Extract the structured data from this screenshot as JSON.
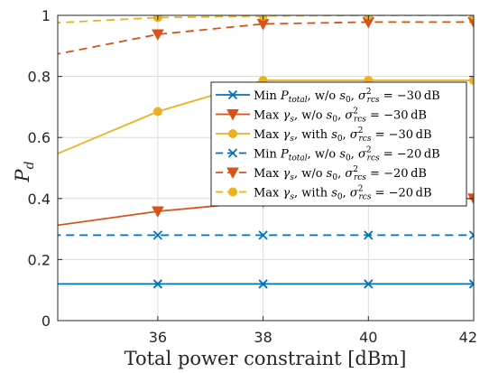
{
  "chart_data": {
    "type": "line",
    "xlabel": "Total power constraint [dBm]",
    "ylabel": "P_d",
    "xlim": [
      34.1,
      42
    ],
    "ylim": [
      0,
      1
    ],
    "xticks": [
      36,
      38,
      40,
      42
    ],
    "yticks": [
      0,
      0.2,
      0.4,
      0.6,
      0.8,
      1
    ],
    "xtick_labels": [
      "36",
      "38",
      "40",
      "42"
    ],
    "ytick_labels": [
      "0",
      "0.2",
      "0.4",
      "0.6",
      "0.8",
      "1"
    ],
    "grid": true,
    "legend_position": "center-right",
    "series": [
      {
        "name": "Min P_total, w/o s_0, σ²_rcs = −30 dB",
        "color": "#0072BD",
        "linestyle": "solid",
        "marker": "x",
        "x": [
          34,
          36,
          38,
          40,
          42
        ],
        "y": [
          0.12,
          0.12,
          0.12,
          0.12,
          0.12
        ],
        "marker_x": [
          36,
          38,
          40,
          42
        ]
      },
      {
        "name": "Max γ_s, w/o s_0, σ²_rcs = −30 dB",
        "color": "#D95319",
        "linestyle": "solid",
        "marker": "triangle-down",
        "x": [
          34,
          36,
          38,
          40,
          42
        ],
        "y": [
          0.31,
          0.358,
          0.39,
          0.4,
          0.4
        ],
        "marker_x": [
          36,
          38,
          40,
          42
        ]
      },
      {
        "name": "Max γ_s, with s_0, σ²_rcs = −30 dB",
        "color": "#EDB120",
        "linestyle": "solid",
        "marker": "circle",
        "x": [
          34,
          36,
          38,
          40,
          42
        ],
        "y": [
          0.54,
          0.685,
          0.787,
          0.787,
          0.787
        ],
        "marker_x": [
          36,
          38,
          40,
          42
        ]
      },
      {
        "name": "Min P_total, w/o s_0, σ²_rcs = −20 dB",
        "color": "#0072BD",
        "linestyle": "dashed",
        "marker": "x",
        "x": [
          34,
          36,
          38,
          40,
          42
        ],
        "y": [
          0.28,
          0.28,
          0.28,
          0.28,
          0.28
        ],
        "marker_x": [
          36,
          38,
          40,
          42
        ]
      },
      {
        "name": "Max γ_s, w/o s_0, σ²_rcs = −20 dB",
        "color": "#D95319",
        "linestyle": "dashed",
        "marker": "triangle-down",
        "x": [
          34,
          36,
          38,
          40,
          42
        ],
        "y": [
          0.87,
          0.938,
          0.972,
          0.978,
          0.978
        ],
        "marker_x": [
          36,
          38,
          40,
          42
        ]
      },
      {
        "name": "Max γ_s, with s_0, σ²_rcs = −20 dB",
        "color": "#EDB120",
        "linestyle": "dashed",
        "marker": "circle",
        "x": [
          34,
          36,
          38,
          40,
          42
        ],
        "y": [
          0.975,
          0.993,
          0.998,
          1.0,
          1.0
        ],
        "marker_x": [
          36,
          38,
          40,
          42
        ]
      }
    ]
  }
}
